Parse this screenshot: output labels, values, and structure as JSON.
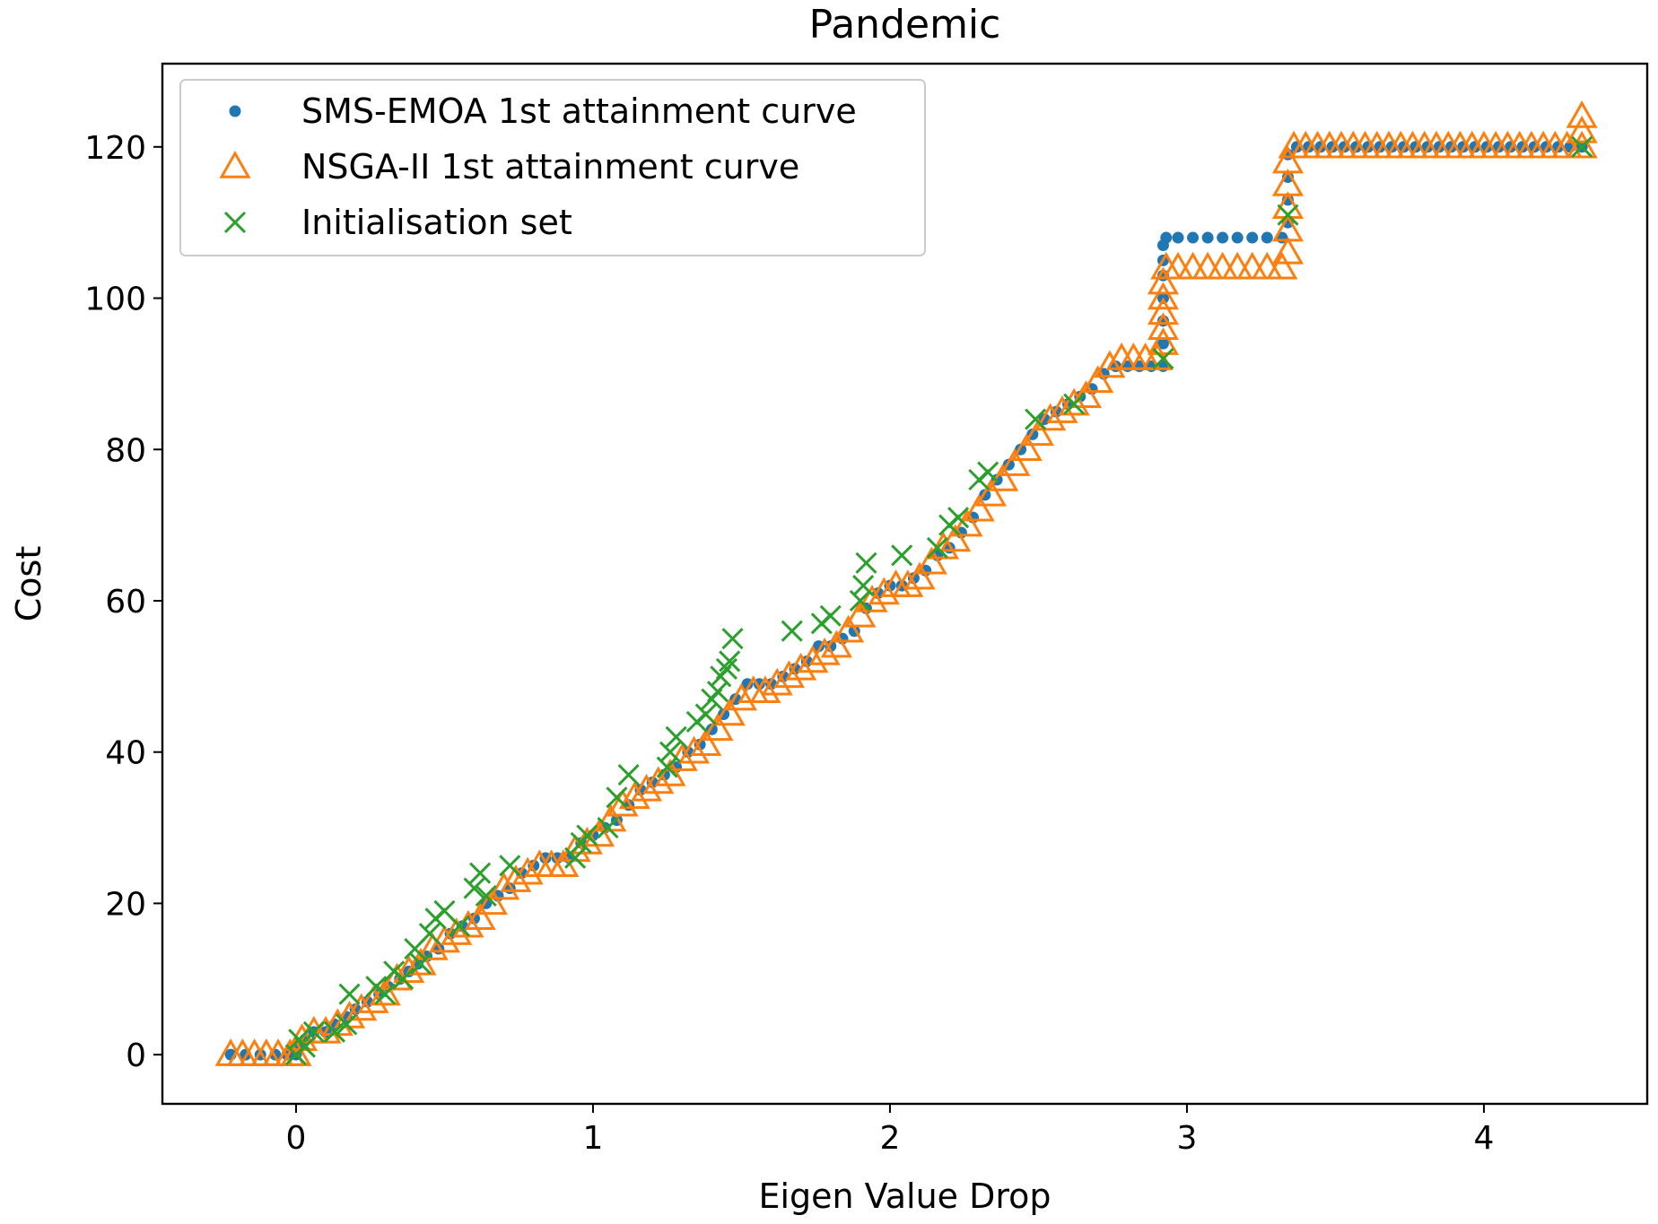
{
  "chart_data": {
    "type": "scatter",
    "title": "Pandemic",
    "xlabel": "Eigen Value Drop",
    "ylabel": "Cost",
    "xlim": [
      -0.45,
      4.55
    ],
    "ylim": [
      -6.5,
      131
    ],
    "xticks": [
      0,
      1,
      2,
      3,
      4
    ],
    "yticks": [
      0,
      20,
      40,
      60,
      80,
      100,
      120
    ],
    "grid": false,
    "legend_position": "top-left",
    "series": [
      {
        "name": "SMS-EMOA 1st attainment curve",
        "marker": "dot",
        "color": "#1f77b4",
        "points": [
          [
            -0.22,
            0
          ],
          [
            -0.17,
            0
          ],
          [
            -0.12,
            0
          ],
          [
            -0.07,
            0
          ],
          [
            -0.03,
            0
          ],
          [
            0.0,
            0
          ],
          [
            0.01,
            1
          ],
          [
            0.03,
            2
          ],
          [
            0.06,
            3
          ],
          [
            0.1,
            3
          ],
          [
            0.13,
            4
          ],
          [
            0.17,
            5
          ],
          [
            0.2,
            6
          ],
          [
            0.24,
            7
          ],
          [
            0.28,
            8
          ],
          [
            0.31,
            9
          ],
          [
            0.35,
            10
          ],
          [
            0.38,
            11
          ],
          [
            0.41,
            12
          ],
          [
            0.44,
            13
          ],
          [
            0.48,
            14
          ],
          [
            0.52,
            16
          ],
          [
            0.56,
            17
          ],
          [
            0.6,
            18
          ],
          [
            0.64,
            20
          ],
          [
            0.68,
            21
          ],
          [
            0.72,
            22
          ],
          [
            0.76,
            24
          ],
          [
            0.8,
            25
          ],
          [
            0.84,
            26
          ],
          [
            0.88,
            26
          ],
          [
            0.92,
            26
          ],
          [
            0.96,
            28
          ],
          [
            1.0,
            29
          ],
          [
            1.04,
            30
          ],
          [
            1.08,
            31
          ],
          [
            1.12,
            33
          ],
          [
            1.16,
            35
          ],
          [
            1.2,
            36
          ],
          [
            1.24,
            37
          ],
          [
            1.28,
            38
          ],
          [
            1.32,
            40
          ],
          [
            1.36,
            41
          ],
          [
            1.4,
            43
          ],
          [
            1.44,
            45
          ],
          [
            1.48,
            47
          ],
          [
            1.52,
            49
          ],
          [
            1.56,
            49
          ],
          [
            1.6,
            49
          ],
          [
            1.64,
            50
          ],
          [
            1.68,
            51
          ],
          [
            1.72,
            52
          ],
          [
            1.76,
            54
          ],
          [
            1.8,
            54
          ],
          [
            1.84,
            55
          ],
          [
            1.88,
            56
          ],
          [
            1.92,
            59
          ],
          [
            1.96,
            61
          ],
          [
            2.0,
            62
          ],
          [
            2.04,
            62
          ],
          [
            2.08,
            63
          ],
          [
            2.12,
            64
          ],
          [
            2.16,
            66
          ],
          [
            2.2,
            67
          ],
          [
            2.24,
            69
          ],
          [
            2.28,
            71
          ],
          [
            2.32,
            74
          ],
          [
            2.36,
            76
          ],
          [
            2.4,
            78
          ],
          [
            2.44,
            80
          ],
          [
            2.48,
            82
          ],
          [
            2.52,
            84
          ],
          [
            2.56,
            85
          ],
          [
            2.6,
            86
          ],
          [
            2.64,
            87
          ],
          [
            2.68,
            88
          ],
          [
            2.72,
            90
          ],
          [
            2.76,
            91
          ],
          [
            2.8,
            91
          ],
          [
            2.84,
            91
          ],
          [
            2.88,
            91
          ],
          [
            2.92,
            91
          ],
          [
            2.92,
            94
          ],
          [
            2.92,
            97
          ],
          [
            2.92,
            100
          ],
          [
            2.92,
            103
          ],
          [
            2.92,
            105
          ],
          [
            2.92,
            107
          ],
          [
            2.93,
            108
          ],
          [
            2.97,
            108
          ],
          [
            3.02,
            108
          ],
          [
            3.07,
            108
          ],
          [
            3.12,
            108
          ],
          [
            3.17,
            108
          ],
          [
            3.22,
            108
          ],
          [
            3.27,
            108
          ],
          [
            3.32,
            108
          ],
          [
            3.34,
            110
          ],
          [
            3.34,
            113
          ],
          [
            3.34,
            116
          ],
          [
            3.34,
            119
          ],
          [
            3.37,
            120
          ],
          [
            3.41,
            120
          ],
          [
            3.45,
            120
          ],
          [
            3.49,
            120
          ],
          [
            3.53,
            120
          ],
          [
            3.57,
            120
          ],
          [
            3.61,
            120
          ],
          [
            3.65,
            120
          ],
          [
            3.69,
            120
          ],
          [
            3.73,
            120
          ],
          [
            3.77,
            120
          ],
          [
            3.81,
            120
          ],
          [
            3.85,
            120
          ],
          [
            3.89,
            120
          ],
          [
            3.93,
            120
          ],
          [
            3.97,
            120
          ],
          [
            4.01,
            120
          ],
          [
            4.05,
            120
          ],
          [
            4.09,
            120
          ],
          [
            4.13,
            120
          ],
          [
            4.17,
            120
          ],
          [
            4.21,
            120
          ],
          [
            4.25,
            120
          ],
          [
            4.29,
            120
          ],
          [
            4.33,
            120
          ]
        ]
      },
      {
        "name": "NSGA-II 1st attainment curve",
        "marker": "triangle",
        "color": "#ff7f0e",
        "points": [
          [
            -0.22,
            0
          ],
          [
            -0.18,
            0
          ],
          [
            -0.14,
            0
          ],
          [
            -0.1,
            0
          ],
          [
            -0.06,
            0
          ],
          [
            -0.02,
            0
          ],
          [
            0.0,
            0
          ],
          [
            0.02,
            2
          ],
          [
            0.06,
            3
          ],
          [
            0.1,
            3
          ],
          [
            0.14,
            4
          ],
          [
            0.18,
            5
          ],
          [
            0.22,
            6
          ],
          [
            0.26,
            7
          ],
          [
            0.3,
            8
          ],
          [
            0.34,
            10
          ],
          [
            0.38,
            11
          ],
          [
            0.42,
            12
          ],
          [
            0.46,
            14
          ],
          [
            0.5,
            15
          ],
          [
            0.54,
            16
          ],
          [
            0.58,
            17
          ],
          [
            0.62,
            18
          ],
          [
            0.66,
            20
          ],
          [
            0.7,
            22
          ],
          [
            0.74,
            23
          ],
          [
            0.78,
            24
          ],
          [
            0.82,
            25
          ],
          [
            0.86,
            25
          ],
          [
            0.9,
            25
          ],
          [
            0.94,
            27
          ],
          [
            0.98,
            28
          ],
          [
            1.02,
            29
          ],
          [
            1.06,
            31
          ],
          [
            1.1,
            33
          ],
          [
            1.14,
            34
          ],
          [
            1.18,
            35
          ],
          [
            1.22,
            36
          ],
          [
            1.26,
            37
          ],
          [
            1.3,
            39
          ],
          [
            1.34,
            40
          ],
          [
            1.38,
            41
          ],
          [
            1.42,
            43
          ],
          [
            1.46,
            45
          ],
          [
            1.5,
            47
          ],
          [
            1.54,
            48
          ],
          [
            1.58,
            48
          ],
          [
            1.62,
            49
          ],
          [
            1.66,
            50
          ],
          [
            1.7,
            51
          ],
          [
            1.74,
            52
          ],
          [
            1.78,
            53
          ],
          [
            1.82,
            54
          ],
          [
            1.86,
            56
          ],
          [
            1.9,
            58
          ],
          [
            1.94,
            60
          ],
          [
            1.98,
            61
          ],
          [
            2.02,
            62
          ],
          [
            2.06,
            62
          ],
          [
            2.1,
            63
          ],
          [
            2.14,
            65
          ],
          [
            2.18,
            67
          ],
          [
            2.22,
            68
          ],
          [
            2.26,
            70
          ],
          [
            2.3,
            72
          ],
          [
            2.34,
            74
          ],
          [
            2.38,
            76
          ],
          [
            2.42,
            78
          ],
          [
            2.46,
            80
          ],
          [
            2.5,
            82
          ],
          [
            2.54,
            84
          ],
          [
            2.58,
            85
          ],
          [
            2.62,
            86
          ],
          [
            2.66,
            87
          ],
          [
            2.7,
            89
          ],
          [
            2.74,
            91
          ],
          [
            2.78,
            92
          ],
          [
            2.82,
            92
          ],
          [
            2.86,
            92
          ],
          [
            2.9,
            92
          ],
          [
            2.92,
            94
          ],
          [
            2.92,
            96
          ],
          [
            2.92,
            98
          ],
          [
            2.92,
            100
          ],
          [
            2.92,
            102
          ],
          [
            2.93,
            104
          ],
          [
            2.97,
            104
          ],
          [
            3.02,
            104
          ],
          [
            3.07,
            104
          ],
          [
            3.12,
            104
          ],
          [
            3.17,
            104
          ],
          [
            3.22,
            104
          ],
          [
            3.27,
            104
          ],
          [
            3.32,
            104
          ],
          [
            3.34,
            106
          ],
          [
            3.34,
            109
          ],
          [
            3.34,
            112
          ],
          [
            3.34,
            115
          ],
          [
            3.34,
            118
          ],
          [
            3.36,
            120
          ],
          [
            3.4,
            120
          ],
          [
            3.44,
            120
          ],
          [
            3.48,
            120
          ],
          [
            3.52,
            120
          ],
          [
            3.56,
            120
          ],
          [
            3.6,
            120
          ],
          [
            3.64,
            120
          ],
          [
            3.68,
            120
          ],
          [
            3.72,
            120
          ],
          [
            3.76,
            120
          ],
          [
            3.8,
            120
          ],
          [
            3.84,
            120
          ],
          [
            3.88,
            120
          ],
          [
            3.92,
            120
          ],
          [
            3.96,
            120
          ],
          [
            4.0,
            120
          ],
          [
            4.04,
            120
          ],
          [
            4.08,
            120
          ],
          [
            4.12,
            120
          ],
          [
            4.16,
            120
          ],
          [
            4.2,
            120
          ],
          [
            4.24,
            120
          ],
          [
            4.28,
            120
          ],
          [
            4.33,
            120
          ],
          [
            4.33,
            122
          ],
          [
            4.33,
            124
          ]
        ]
      },
      {
        "name": "Initialisation set",
        "marker": "x",
        "color": "#2ca02c",
        "points": [
          [
            0.0,
            0
          ],
          [
            0.01,
            2
          ],
          [
            0.03,
            1
          ],
          [
            0.06,
            3
          ],
          [
            0.13,
            3
          ],
          [
            0.17,
            4
          ],
          [
            0.18,
            8
          ],
          [
            0.27,
            9
          ],
          [
            0.3,
            8
          ],
          [
            0.33,
            11
          ],
          [
            0.36,
            10
          ],
          [
            0.4,
            14
          ],
          [
            0.42,
            12
          ],
          [
            0.45,
            16
          ],
          [
            0.47,
            18
          ],
          [
            0.5,
            19
          ],
          [
            0.55,
            17
          ],
          [
            0.6,
            22
          ],
          [
            0.62,
            24
          ],
          [
            0.64,
            21
          ],
          [
            0.72,
            25
          ],
          [
            0.94,
            26
          ],
          [
            0.96,
            28
          ],
          [
            0.98,
            29
          ],
          [
            1.05,
            30
          ],
          [
            1.08,
            34
          ],
          [
            1.12,
            37
          ],
          [
            1.25,
            38
          ],
          [
            1.26,
            40
          ],
          [
            1.28,
            42
          ],
          [
            1.35,
            44
          ],
          [
            1.38,
            45
          ],
          [
            1.4,
            47
          ],
          [
            1.42,
            48
          ],
          [
            1.43,
            50
          ],
          [
            1.45,
            51
          ],
          [
            1.46,
            52
          ],
          [
            1.47,
            55
          ],
          [
            1.67,
            56
          ],
          [
            1.77,
            57
          ],
          [
            1.8,
            58
          ],
          [
            1.9,
            60
          ],
          [
            1.91,
            62
          ],
          [
            1.92,
            65
          ],
          [
            2.04,
            66
          ],
          [
            2.16,
            67
          ],
          [
            2.2,
            70
          ],
          [
            2.23,
            71
          ],
          [
            2.3,
            76
          ],
          [
            2.33,
            77
          ],
          [
            2.49,
            84
          ],
          [
            2.62,
            86
          ],
          [
            2.92,
            92
          ],
          [
            3.34,
            111
          ],
          [
            4.33,
            120
          ]
        ]
      }
    ]
  }
}
